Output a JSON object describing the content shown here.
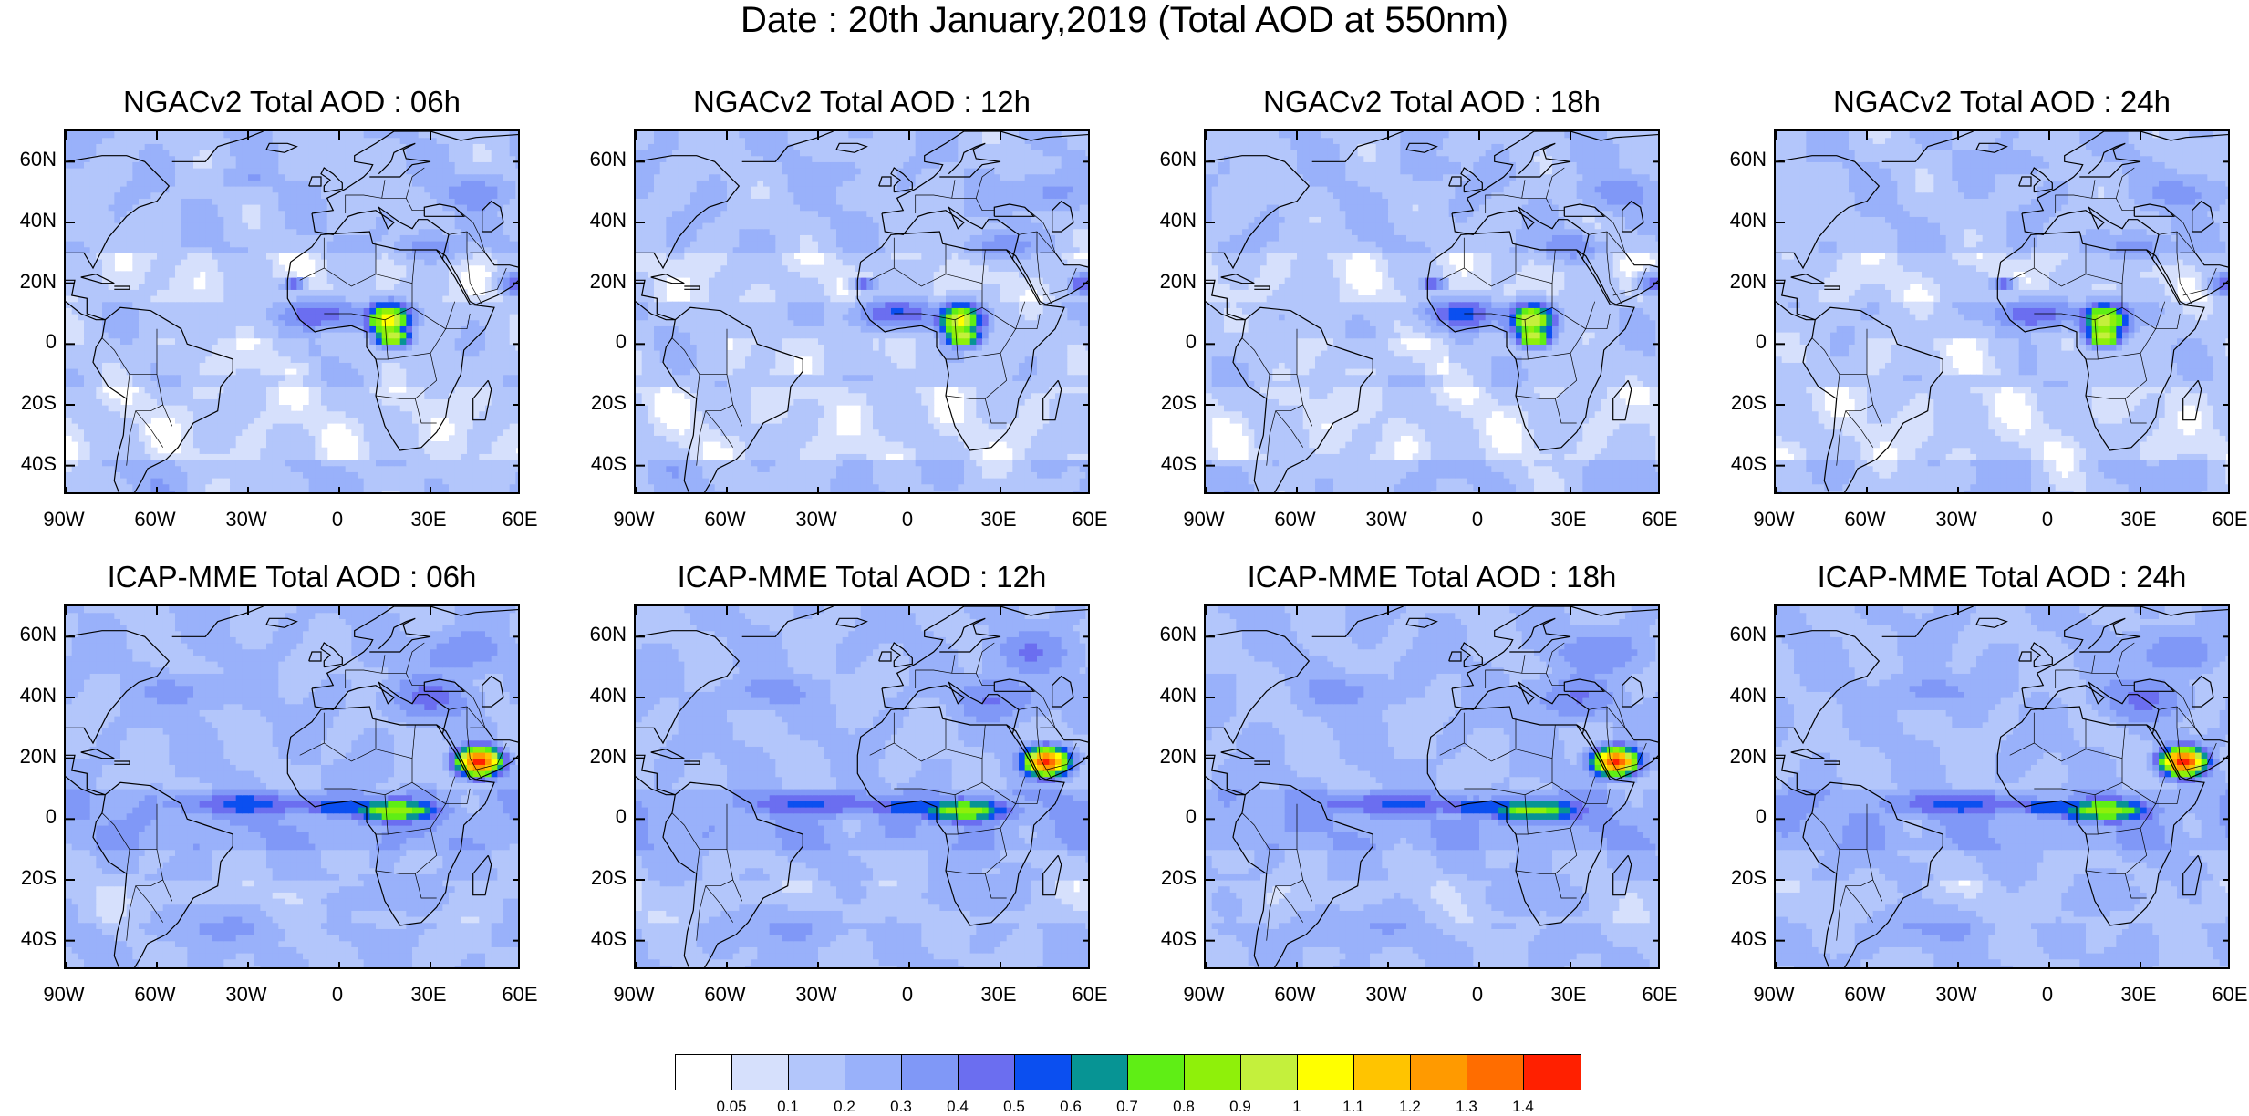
{
  "title": "Date : 20th January,2019 (Total AOD at 550nm)",
  "panels": [
    {
      "title": "NGACv2 Total AOD : 06h",
      "model": "ngac",
      "hour": 6
    },
    {
      "title": "NGACv2 Total AOD : 12h",
      "model": "ngac",
      "hour": 12
    },
    {
      "title": "NGACv2 Total AOD : 18h",
      "model": "ngac",
      "hour": 18
    },
    {
      "title": "NGACv2 Total AOD : 24h",
      "model": "ngac",
      "hour": 24
    },
    {
      "title": "ICAP-MME Total AOD : 06h",
      "model": "icap",
      "hour": 6
    },
    {
      "title": "ICAP-MME Total AOD : 12h",
      "model": "icap",
      "hour": 12
    },
    {
      "title": "ICAP-MME Total AOD : 18h",
      "model": "icap",
      "hour": 18
    },
    {
      "title": "ICAP-MME Total AOD : 24h",
      "model": "icap",
      "hour": 24
    }
  ],
  "lat_labels": [
    "60N",
    "40N",
    "20N",
    "0",
    "20S",
    "40S"
  ],
  "lon_labels": [
    "90W",
    "60W",
    "30W",
    "0",
    "30E",
    "60E"
  ],
  "map_extent": {
    "lon": [
      -90,
      60
    ],
    "lat": [
      -50,
      70
    ]
  },
  "colorbar": {
    "labels": [
      "0.05",
      "0.1",
      "0.2",
      "0.3",
      "0.4",
      "0.5",
      "0.6",
      "0.7",
      "0.8",
      "0.9",
      "1",
      "1.1",
      "1.2",
      "1.3",
      "1.4"
    ],
    "colors": [
      "#ffffff",
      "#d6e0fc",
      "#b3c6fb",
      "#99b1fa",
      "#8098f7",
      "#6b6ef0",
      "#0b4ff0",
      "#079494",
      "#5fee15",
      "#8ff00a",
      "#c4f03c",
      "#ffff00",
      "#ffc400",
      "#ff9a00",
      "#ff6d00",
      "#ff2000"
    ]
  }
}
